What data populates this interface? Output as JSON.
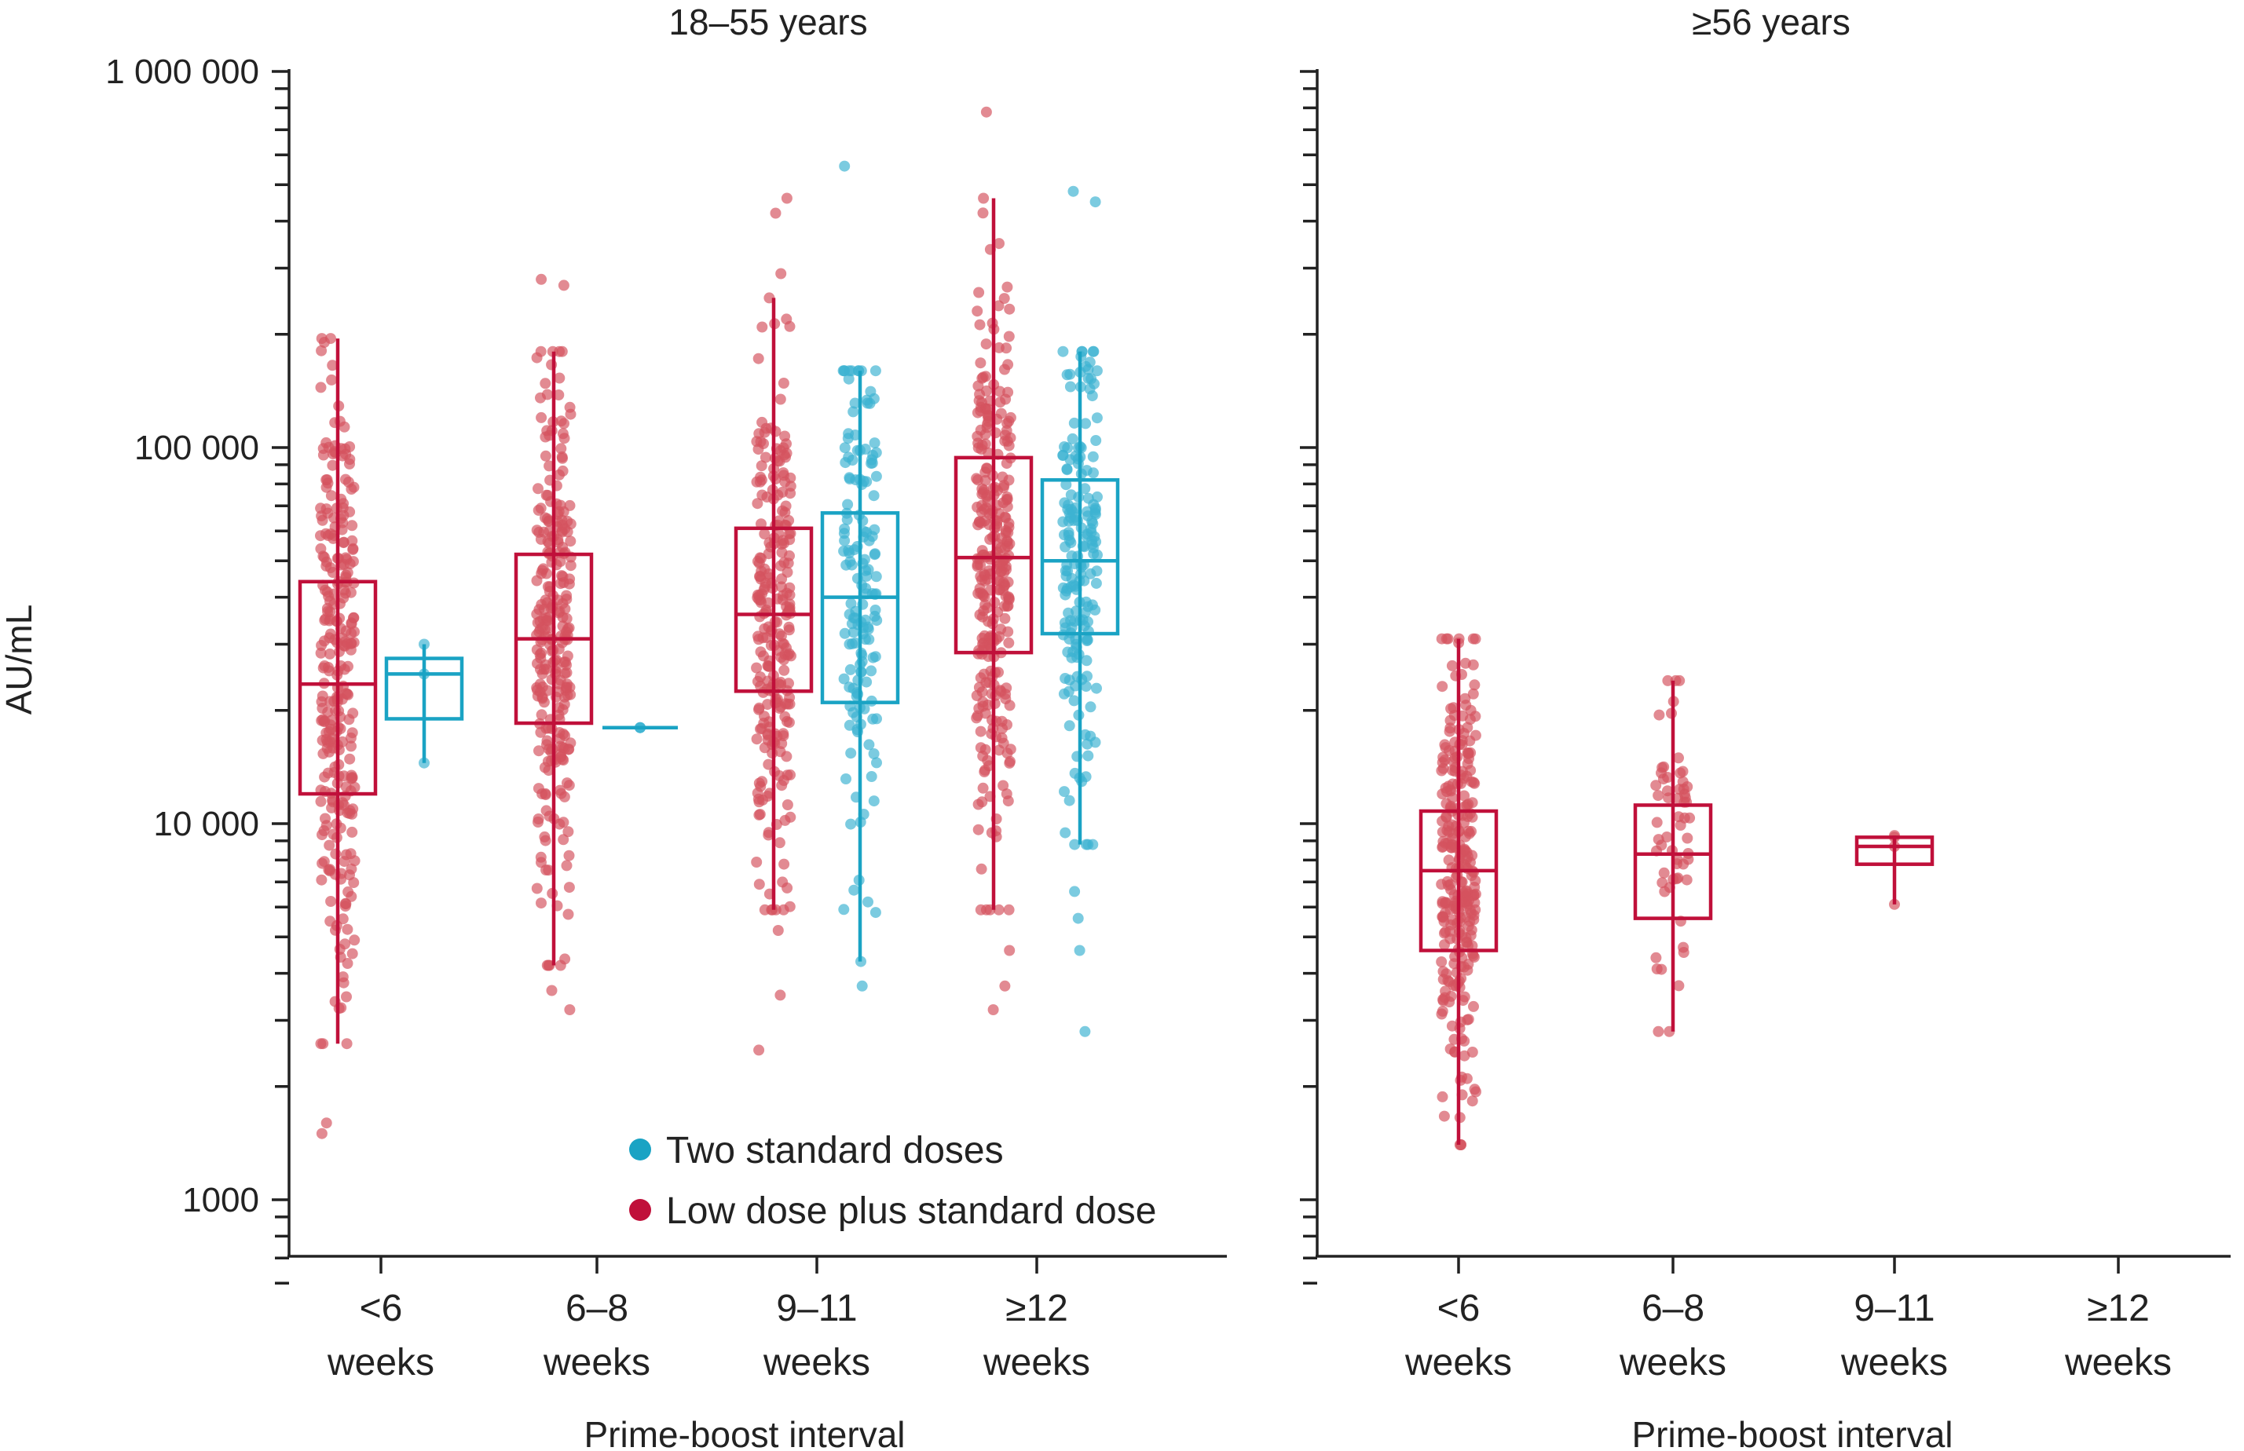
{
  "chart_data": {
    "type": "box",
    "ylabel": "AU/mL",
    "yscale": "log",
    "ylim": [
      600,
      1000000
    ],
    "y_ticks": [
      {
        "value": 1000,
        "label": "1000"
      },
      {
        "value": 10000,
        "label": "10 000"
      },
      {
        "value": 100000,
        "label": "100 000"
      },
      {
        "value": 1000000,
        "label": "1 000 000"
      }
    ],
    "categories": [
      {
        "line1": "<6",
        "line2": "weeks"
      },
      {
        "line1": "6–8",
        "line2": "weeks"
      },
      {
        "line1": "9–11",
        "line2": "weeks"
      },
      {
        "line1": "≥12",
        "line2": "weeks"
      }
    ],
    "xlabel": "Prime-boost interval",
    "legend": {
      "placement": "bottom-right of left panel",
      "entries": [
        {
          "label": "Two standard doses",
          "color": "#1aa3c4"
        },
        {
          "label": "Low dose plus standard dose",
          "color": "#c0103a"
        }
      ]
    },
    "panels": [
      {
        "title": "18–55 years",
        "series": [
          {
            "name": "Low dose plus standard dose",
            "color": "#c0103a",
            "boxes": [
              {
                "category": "<6",
                "n": 280,
                "whisker_low": 2600,
                "q1": 12000,
                "median": 23500,
                "q3": 44000,
                "whisker_high": 195000,
                "outliers": [
                  1600,
                  1500
                ]
              },
              {
                "category": "6–8",
                "n": 270,
                "whisker_low": 4200,
                "q1": 18500,
                "median": 31000,
                "q3": 52000,
                "whisker_high": 180000,
                "outliers": [
                  3600,
                  3200,
                  270000,
                  280000
                ]
              },
              {
                "category": "9–11",
                "n": 250,
                "whisker_low": 5900,
                "q1": 22500,
                "median": 36000,
                "q3": 61000,
                "whisker_high": 250000,
                "outliers": [
                  5200,
                  3500,
                  2500,
                  290000,
                  420000,
                  460000
                ]
              },
              {
                "category": "≥12",
                "n": 300,
                "whisker_low": 5900,
                "q1": 28500,
                "median": 51000,
                "q3": 94000,
                "whisker_high": 460000,
                "outliers": [
                  4600,
                  3700,
                  3200,
                  780000
                ]
              }
            ]
          },
          {
            "name": "Two standard doses",
            "color": "#1aa3c4",
            "boxes": [
              {
                "category": "<6",
                "n": 3,
                "whisker_low": 14500,
                "q1": 19000,
                "median": 25000,
                "q3": 27500,
                "whisker_high": 30000,
                "outliers": []
              },
              {
                "category": "6–8",
                "n": 1,
                "whisker_low": 18000,
                "q1": 18000,
                "median": 18000,
                "q3": 18000,
                "whisker_high": 18000,
                "outliers": []
              },
              {
                "category": "9–11",
                "n": 150,
                "whisker_low": 4300,
                "q1": 21000,
                "median": 40000,
                "q3": 67000,
                "whisker_high": 160000,
                "outliers": [
                  3700,
                  560000
                ]
              },
              {
                "category": "≥12",
                "n": 180,
                "whisker_low": 8800,
                "q1": 32000,
                "median": 50000,
                "q3": 82000,
                "whisker_high": 180000,
                "outliers": [
                  6600,
                  5600,
                  4600,
                  2800,
                  450000,
                  480000
                ]
              }
            ]
          }
        ]
      },
      {
        "title": "≥56 years",
        "series": [
          {
            "name": "Low dose plus standard dose",
            "color": "#c0103a",
            "boxes": [
              {
                "category": "<6",
                "n": 280,
                "whisker_low": 1400,
                "q1": 4600,
                "median": 7500,
                "q3": 10800,
                "whisker_high": 31000,
                "outliers": []
              },
              {
                "category": "6–8",
                "n": 60,
                "whisker_low": 2800,
                "q1": 5600,
                "median": 8300,
                "q3": 11200,
                "whisker_high": 24000,
                "outliers": []
              },
              {
                "category": "9–11",
                "n": 4,
                "whisker_low": 6100,
                "q1": 7800,
                "median": 8700,
                "q3": 9200,
                "whisker_high": 9300,
                "outliers": []
              }
            ]
          }
        ]
      }
    ]
  }
}
